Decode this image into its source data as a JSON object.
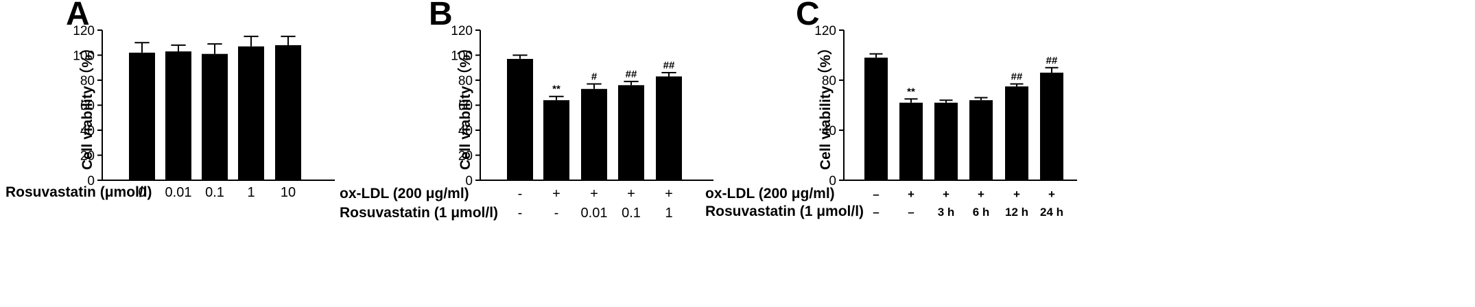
{
  "colors": {
    "bar": "#000000",
    "axis": "#000000",
    "background": "#ffffff"
  },
  "chart_data": [
    {
      "panel": "A",
      "type": "bar",
      "ylabel": "Cell viability （%）",
      "ylim": [
        0,
        120
      ],
      "yticks": [
        0,
        20,
        40,
        60,
        80,
        100,
        120
      ],
      "values": [
        102,
        103,
        101,
        107,
        108
      ],
      "errors": [
        8,
        5,
        8,
        8,
        7
      ],
      "significance": [
        "",
        "",
        "",
        "",
        ""
      ],
      "conditions": [
        {
          "label": "Rosuvastatin (μmol/l)",
          "values": [
            "0",
            "0.01",
            "0.1",
            "1",
            "10"
          ]
        }
      ]
    },
    {
      "panel": "B",
      "type": "bar",
      "ylabel": "Cell viability （%）",
      "ylim": [
        0,
        120
      ],
      "yticks": [
        0,
        20,
        40,
        60,
        80,
        100,
        120
      ],
      "values": [
        97,
        64,
        73,
        76,
        83
      ],
      "errors": [
        3,
        3,
        4,
        3,
        3
      ],
      "significance": [
        "",
        "**",
        "#",
        "##",
        "##"
      ],
      "conditions": [
        {
          "label": "ox-LDL (200 μg/ml)",
          "values": [
            "-",
            "+",
            "+",
            "+",
            "+"
          ]
        },
        {
          "label": "Rosuvastatin (1 μmol/l)",
          "values": [
            "-",
            "-",
            "0.01",
            "0.1",
            "1"
          ]
        }
      ]
    },
    {
      "panel": "C",
      "type": "bar",
      "ylabel": "Cell viability （%）",
      "ylim": [
        0,
        120
      ],
      "yticks": [
        0,
        40,
        80,
        120
      ],
      "values": [
        98,
        62,
        62,
        64,
        75,
        86
      ],
      "errors": [
        3,
        3,
        2,
        2,
        2,
        4
      ],
      "significance": [
        "",
        "**",
        "",
        "",
        "##",
        "##"
      ],
      "conditions": [
        {
          "label": "ox-LDL (200 μg/ml)",
          "values": [
            "–",
            "+",
            "+",
            "+",
            "+",
            "+"
          ]
        },
        {
          "label": "Rosuvastatin (1 μmol/l)",
          "values": [
            "–",
            "–",
            "3 h",
            "6 h",
            "12 h",
            "24 h"
          ]
        }
      ]
    }
  ]
}
